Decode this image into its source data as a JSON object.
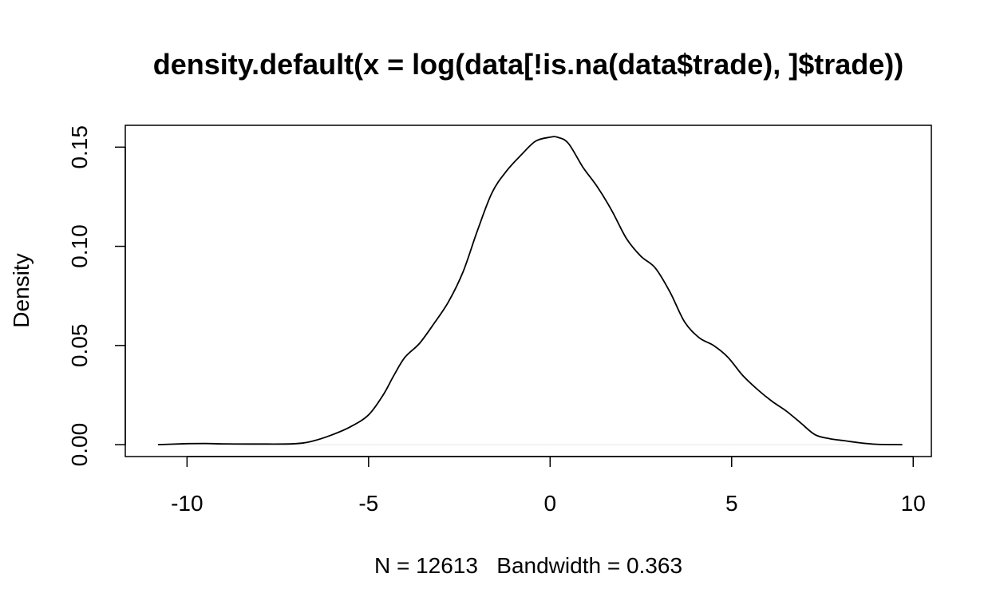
{
  "chart_data": {
    "type": "line",
    "title": "density.default(x = log(data[!is.na(data$trade), ]$trade))",
    "subtitle": "N = 12613   Bandwidth = 0.363",
    "xlabel": "N = 12613   Bandwidth = 0.363",
    "ylabel": "Density",
    "xlim": [
      -11.7,
      10.5
    ],
    "ylim": [
      -0.006,
      0.161
    ],
    "x_ticks": [
      -10,
      -5,
      0,
      5,
      10
    ],
    "x_tick_labels": [
      "-10",
      "-5",
      "0",
      "5",
      "10"
    ],
    "y_ticks": [
      0.0,
      0.05,
      0.1,
      0.15
    ],
    "y_tick_labels": [
      "0.00",
      "0.05",
      "0.10",
      "0.15"
    ],
    "grid": false,
    "zero_line": true,
    "series": [
      {
        "x": [
          -10.8,
          -10.0,
          -9.5,
          -9.0,
          -8.0,
          -7.0,
          -6.5,
          -6.0,
          -5.5,
          -5.0,
          -4.6,
          -4.3,
          -4.0,
          -3.6,
          -3.2,
          -2.8,
          -2.4,
          -2.0,
          -1.6,
          -1.2,
          -0.8,
          -0.4,
          0.0,
          0.2,
          0.5,
          0.9,
          1.3,
          1.7,
          2.1,
          2.5,
          2.9,
          3.3,
          3.7,
          4.1,
          4.5,
          4.9,
          5.3,
          5.7,
          6.1,
          6.5,
          6.9,
          7.3,
          7.7,
          8.1,
          8.5,
          9.0,
          9.7
        ],
        "y": [
          0.0,
          0.0005,
          0.0006,
          0.0004,
          0.0003,
          0.0005,
          0.002,
          0.005,
          0.009,
          0.015,
          0.025,
          0.035,
          0.044,
          0.051,
          0.061,
          0.072,
          0.087,
          0.108,
          0.127,
          0.138,
          0.146,
          0.153,
          0.155,
          0.155,
          0.152,
          0.14,
          0.13,
          0.118,
          0.104,
          0.095,
          0.089,
          0.077,
          0.062,
          0.054,
          0.05,
          0.044,
          0.035,
          0.028,
          0.022,
          0.017,
          0.011,
          0.005,
          0.003,
          0.002,
          0.001,
          0.0002,
          0.0
        ]
      }
    ]
  }
}
